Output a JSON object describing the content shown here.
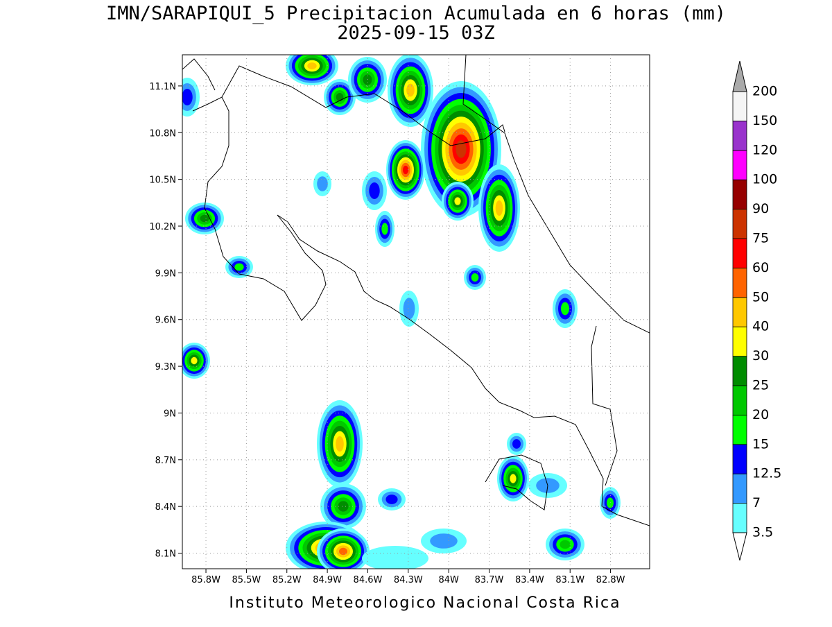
{
  "title": "IMN/SARAPIQUI_5 Precipitacion Acumulada en 6 horas (mm)",
  "subtitle": "2025-09-15 03Z",
  "footer": "Instituto Meteorologico Nacional Costa Rica",
  "map": {
    "lon_range": [
      -85.975,
      -82.51
    ],
    "lat_range": [
      8.0,
      11.3
    ],
    "lon_ticks": [
      {
        "value": -85.8,
        "label": "85.8W"
      },
      {
        "value": -85.5,
        "label": "85.5W"
      },
      {
        "value": -85.2,
        "label": "85.2W"
      },
      {
        "value": -84.9,
        "label": "84.9W"
      },
      {
        "value": -84.6,
        "label": "84.6W"
      },
      {
        "value": -84.3,
        "label": "84.3W"
      },
      {
        "value": -84.0,
        "label": "84W"
      },
      {
        "value": -83.7,
        "label": "83.7W"
      },
      {
        "value": -83.4,
        "label": "83.4W"
      },
      {
        "value": -83.1,
        "label": "83.1W"
      },
      {
        "value": -82.8,
        "label": "82.8W"
      }
    ],
    "lat_ticks": [
      {
        "value": 8.1,
        "label": "8.1N"
      },
      {
        "value": 8.4,
        "label": "8.4N"
      },
      {
        "value": 8.7,
        "label": "8.7N"
      },
      {
        "value": 9.0,
        "label": "9N"
      },
      {
        "value": 9.3,
        "label": "9.3N"
      },
      {
        "value": 9.6,
        "label": "9.6N"
      },
      {
        "value": 9.9,
        "label": "9.9N"
      },
      {
        "value": 10.2,
        "label": "10.2N"
      },
      {
        "value": 10.5,
        "label": "10.5N"
      },
      {
        "value": 10.8,
        "label": "10.8N"
      },
      {
        "value": 11.1,
        "label": "11.1N"
      }
    ]
  },
  "colorbar": {
    "levels": [
      3.5,
      7,
      12.5,
      15,
      20,
      25,
      30,
      40,
      50,
      60,
      75,
      90,
      100,
      120,
      150,
      200
    ],
    "colors": [
      "#66ffff",
      "#3399ff",
      "#0000ff",
      "#00ff00",
      "#00c800",
      "#008c00",
      "#ffff00",
      "#ffc800",
      "#ff6400",
      "#ff0000",
      "#cc3300",
      "#960000",
      "#ff00ff",
      "#9933cc",
      "#f5f5f5"
    ],
    "over_color": "#aaaaaa",
    "under_color": "#ffffff"
  }
}
